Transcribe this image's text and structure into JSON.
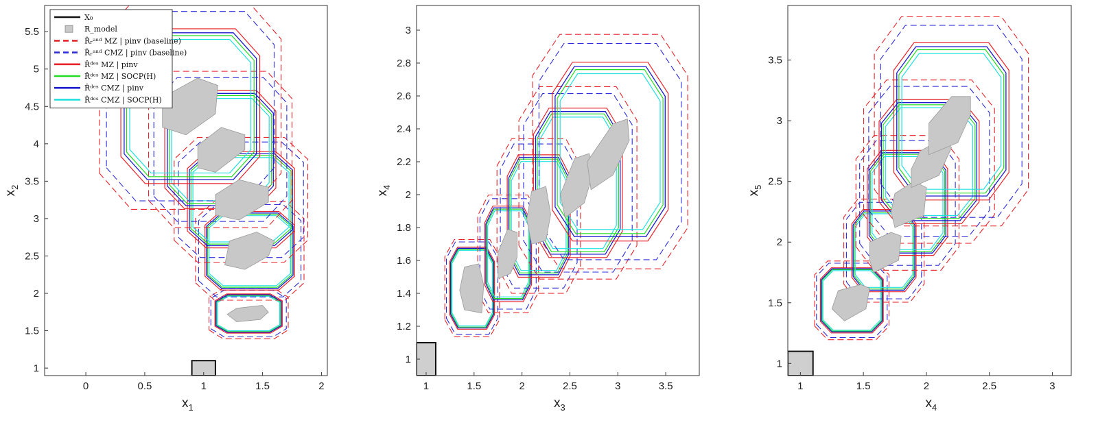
{
  "chart_data": [
    {
      "type": "area",
      "xlabel": "x",
      "xlabel_sub": "1",
      "ylabel": "x",
      "ylabel_sub": "2",
      "xlim": [
        -0.35,
        2.05
      ],
      "ylim": [
        0.9,
        5.85
      ],
      "xticks": [
        "0",
        "0.5",
        "1",
        "1.5",
        "2"
      ],
      "xtick_values": [
        0,
        0.5,
        1,
        1.5,
        2
      ],
      "yticks": [
        "1",
        "1.5",
        "2",
        "2.5",
        "3",
        "3.5",
        "4",
        "4.5",
        "5",
        "5.5"
      ],
      "ytick_values": [
        1,
        1.5,
        2,
        2.5,
        3,
        3.5,
        4,
        4.5,
        5,
        5.5
      ],
      "initial_set": {
        "x": [
          0.9,
          1.1
        ],
        "y": [
          0.9,
          1.1
        ]
      },
      "model_regions": [
        [
          [
            1.28,
            1.62
          ],
          [
            1.48,
            1.65
          ],
          [
            1.55,
            1.75
          ],
          [
            1.5,
            1.84
          ],
          [
            1.28,
            1.8
          ],
          [
            1.2,
            1.72
          ]
        ],
        [
          [
            1.18,
            2.38
          ],
          [
            1.35,
            2.32
          ],
          [
            1.55,
            2.5
          ],
          [
            1.6,
            2.7
          ],
          [
            1.45,
            2.82
          ],
          [
            1.22,
            2.7
          ]
        ],
        [
          [
            1.1,
            3.05
          ],
          [
            1.3,
            2.98
          ],
          [
            1.55,
            3.22
          ],
          [
            1.55,
            3.42
          ],
          [
            1.3,
            3.52
          ],
          [
            1.1,
            3.32
          ]
        ],
        [
          [
            0.95,
            3.68
          ],
          [
            1.1,
            3.62
          ],
          [
            1.35,
            3.92
          ],
          [
            1.35,
            4.12
          ],
          [
            1.15,
            4.22
          ],
          [
            0.95,
            3.98
          ]
        ],
        [
          [
            0.65,
            4.22
          ],
          [
            0.85,
            4.12
          ],
          [
            1.1,
            4.4
          ],
          [
            1.12,
            4.78
          ],
          [
            0.95,
            4.88
          ],
          [
            0.65,
            4.62
          ]
        ]
      ]
    },
    {
      "type": "area",
      "xlabel": "x",
      "xlabel_sub": "3",
      "ylabel": "x",
      "ylabel_sub": "4",
      "xlim": [
        0.9,
        3.85
      ],
      "ylim": [
        0.9,
        3.15
      ],
      "xticks": [
        "1",
        "1.5",
        "2",
        "2.5",
        "3",
        "3.5"
      ],
      "xtick_values": [
        1,
        1.5,
        2,
        2.5,
        3,
        3.5
      ],
      "yticks": [
        "1",
        "1.2",
        "1.4",
        "1.6",
        "1.8",
        "2",
        "2.2",
        "2.4",
        "2.6",
        "2.8",
        "3"
      ],
      "ytick_values": [
        1,
        1.2,
        1.4,
        1.6,
        1.8,
        2,
        2.2,
        2.4,
        2.6,
        2.8,
        3
      ],
      "initial_set": {
        "x": [
          0.9,
          1.1
        ],
        "y": [
          0.9,
          1.1
        ]
      },
      "model_regions": [
        [
          [
            1.4,
            1.3
          ],
          [
            1.58,
            1.28
          ],
          [
            1.6,
            1.45
          ],
          [
            1.55,
            1.58
          ],
          [
            1.4,
            1.56
          ],
          [
            1.35,
            1.42
          ]
        ],
        [
          [
            1.75,
            1.49
          ],
          [
            1.88,
            1.52
          ],
          [
            1.95,
            1.62
          ],
          [
            1.95,
            1.77
          ],
          [
            1.85,
            1.79
          ],
          [
            1.75,
            1.65
          ]
        ],
        [
          [
            2.1,
            1.7
          ],
          [
            2.25,
            1.72
          ],
          [
            2.3,
            1.88
          ],
          [
            2.25,
            2.05
          ],
          [
            2.1,
            2.02
          ],
          [
            2.05,
            1.85
          ]
        ],
        [
          [
            2.45,
            1.86
          ],
          [
            2.65,
            1.95
          ],
          [
            2.75,
            2.15
          ],
          [
            2.7,
            2.25
          ],
          [
            2.55,
            2.22
          ],
          [
            2.4,
            2.0
          ]
        ],
        [
          [
            2.72,
            2.03
          ],
          [
            2.95,
            2.12
          ],
          [
            3.12,
            2.33
          ],
          [
            3.1,
            2.46
          ],
          [
            2.95,
            2.43
          ],
          [
            2.68,
            2.2
          ]
        ]
      ]
    },
    {
      "type": "area",
      "xlabel": "x",
      "xlabel_sub": "4",
      "ylabel": "x",
      "ylabel_sub": "5",
      "xlim": [
        0.9,
        3.15
      ],
      "ylim": [
        0.9,
        3.95
      ],
      "xticks": [
        "1",
        "1.5",
        "2",
        "2.5",
        "3"
      ],
      "xtick_values": [
        1,
        1.5,
        2,
        2.5,
        3
      ],
      "yticks": [
        "1",
        "1.5",
        "2",
        "2.5",
        "3",
        "3.5"
      ],
      "ytick_values": [
        1,
        1.5,
        2,
        2.5,
        3,
        3.5
      ],
      "initial_set": {
        "x": [
          0.9,
          1.1
        ],
        "y": [
          0.9,
          1.1
        ]
      },
      "model_regions": [
        [
          [
            1.35,
            1.35
          ],
          [
            1.52,
            1.45
          ],
          [
            1.55,
            1.62
          ],
          [
            1.48,
            1.65
          ],
          [
            1.3,
            1.6
          ],
          [
            1.25,
            1.45
          ]
        ],
        [
          [
            1.58,
            1.75
          ],
          [
            1.78,
            1.85
          ],
          [
            1.8,
            2.05
          ],
          [
            1.72,
            2.08
          ],
          [
            1.55,
            2.0
          ],
          [
            1.55,
            1.85
          ]
        ],
        [
          [
            1.75,
            2.12
          ],
          [
            1.98,
            2.22
          ],
          [
            2.0,
            2.45
          ],
          [
            1.9,
            2.5
          ],
          [
            1.75,
            2.4
          ],
          [
            1.72,
            2.25
          ]
        ],
        [
          [
            1.88,
            2.45
          ],
          [
            2.1,
            2.55
          ],
          [
            2.2,
            2.78
          ],
          [
            2.12,
            2.85
          ],
          [
            1.95,
            2.75
          ],
          [
            1.88,
            2.6
          ]
        ],
        [
          [
            2.02,
            2.72
          ],
          [
            2.25,
            2.82
          ],
          [
            2.35,
            3.05
          ],
          [
            2.35,
            3.2
          ],
          [
            2.2,
            3.2
          ],
          [
            2.02,
            2.98
          ]
        ]
      ]
    }
  ],
  "legend": {
    "entries": [
      {
        "label": "X₀",
        "style": "initial",
        "color": "#111111"
      },
      {
        "label": "R_model",
        "style": "patch",
        "color": "#c8c8c8"
      },
      {
        "label": "R̂ᵣᵃⁿᵈ MZ | pinv (baseline)",
        "style": "dashed",
        "color": "#e8232a"
      },
      {
        "label": "R̂ᵣᵃⁿᵈ CMZ | pinv (baseline)",
        "style": "dashed",
        "color": "#2b2bd9"
      },
      {
        "label": "R̂ᵈᵉˢ MZ | pinv",
        "style": "solid",
        "color": "#e8232a"
      },
      {
        "label": "R̂ᵈᵉˢ MZ | SOCP(H)",
        "style": "solid",
        "color": "#22dd22"
      },
      {
        "label": "R̂ᵈᵉˢ CMZ | pinv",
        "style": "solid",
        "color": "#1a1acc"
      },
      {
        "label": "R̂ᵈᵉˢ CMZ | SOCP(H)",
        "style": "solid",
        "color": "#22e0e0"
      }
    ]
  }
}
